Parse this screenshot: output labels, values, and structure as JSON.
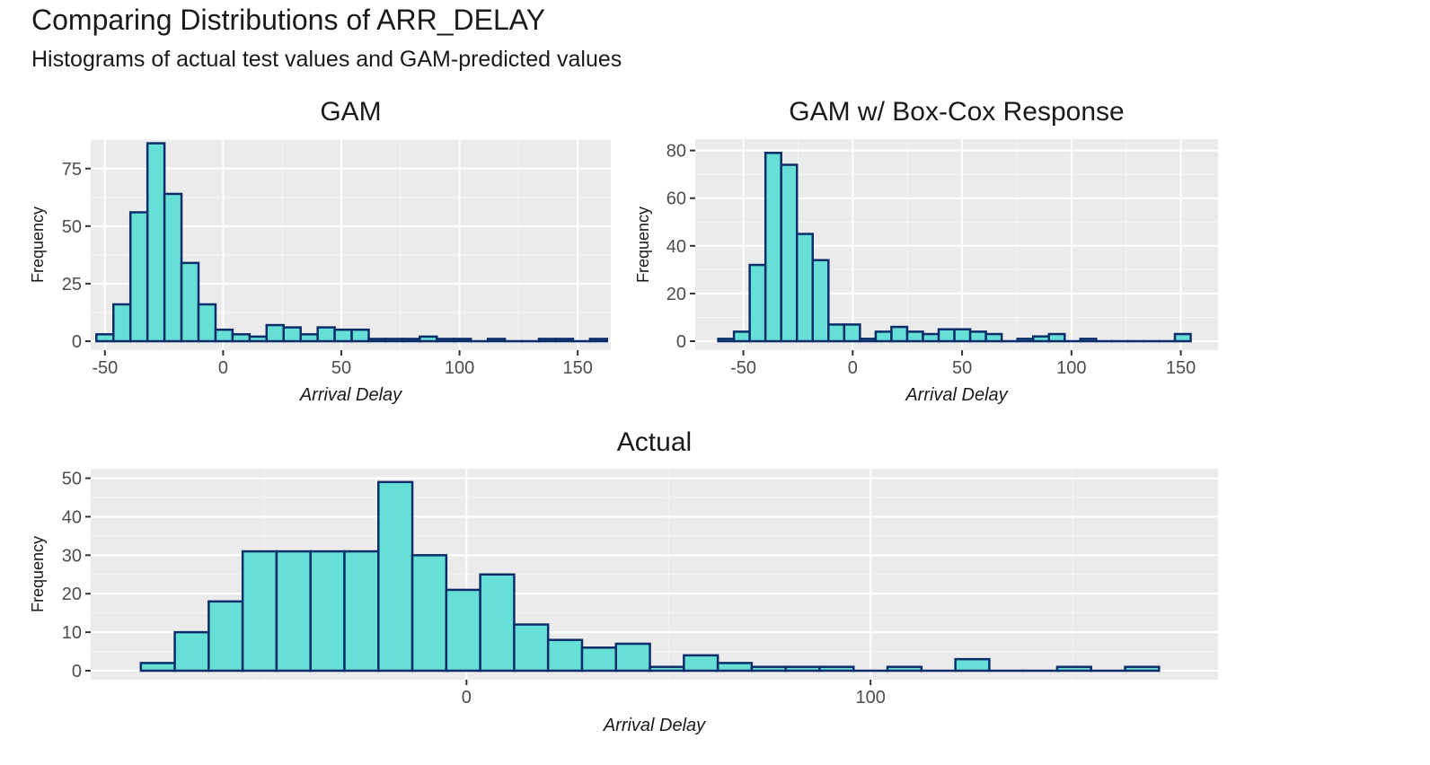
{
  "header": {
    "title": "Comparing Distributions of ARR_DELAY",
    "subtitle": "Histograms of actual test values and GAM-predicted values"
  },
  "colors": {
    "panel_bg": "#EBEBEB",
    "grid": "#FFFFFF",
    "bar_fill": "#66E0D6",
    "bar_stroke": "#0B2E6B"
  },
  "chart_data": [
    {
      "type": "bar",
      "title": "GAM",
      "xlabel": "Arrival Delay",
      "ylabel": "Frequency",
      "xlim": [
        -56,
        164
      ],
      "ylim": [
        0,
        87
      ],
      "xticks": [
        -50,
        0,
        50,
        100,
        150
      ],
      "yticks": [
        0,
        25,
        50,
        75
      ],
      "bin_width": 7.2,
      "bin_start": -53.6,
      "values": [
        3,
        16,
        56,
        86,
        64,
        34,
        16,
        5,
        3,
        2,
        7,
        6,
        3,
        6,
        5,
        5,
        1,
        1,
        1,
        2,
        1,
        1,
        0,
        1,
        0,
        0,
        1,
        1,
        0,
        1
      ]
    },
    {
      "type": "bar",
      "title": "GAM w/ Box-Cox Response",
      "xlabel": "Arrival Delay",
      "ylabel": "Frequency",
      "xlim": [
        -72,
        167
      ],
      "ylim": [
        0,
        84
      ],
      "xticks": [
        -50,
        0,
        50,
        100,
        150
      ],
      "yticks": [
        0,
        20,
        40,
        60,
        80
      ],
      "bin_width": 7.2,
      "bin_start": -61.5,
      "values": [
        1,
        4,
        32,
        79,
        74,
        45,
        34,
        7,
        7,
        1,
        4,
        6,
        4,
        3,
        5,
        5,
        4,
        3,
        0,
        1,
        2,
        3,
        0,
        1,
        0,
        0,
        0,
        0,
        0,
        3
      ]
    },
    {
      "type": "bar",
      "title": "Actual",
      "xlabel": "Arrival Delay",
      "ylabel": "Frequency",
      "xlim": [
        -93,
        186
      ],
      "ylim": [
        0,
        52
      ],
      "xticks": [
        0,
        100
      ],
      "yticks": [
        0,
        10,
        20,
        30,
        40,
        50
      ],
      "bin_width": 8.4,
      "bin_start": -80.6,
      "values": [
        2,
        10,
        18,
        31,
        31,
        31,
        31,
        49,
        30,
        21,
        25,
        12,
        8,
        6,
        7,
        1,
        4,
        2,
        1,
        1,
        1,
        0,
        1,
        0,
        3,
        0,
        0,
        1,
        0,
        1
      ]
    }
  ]
}
